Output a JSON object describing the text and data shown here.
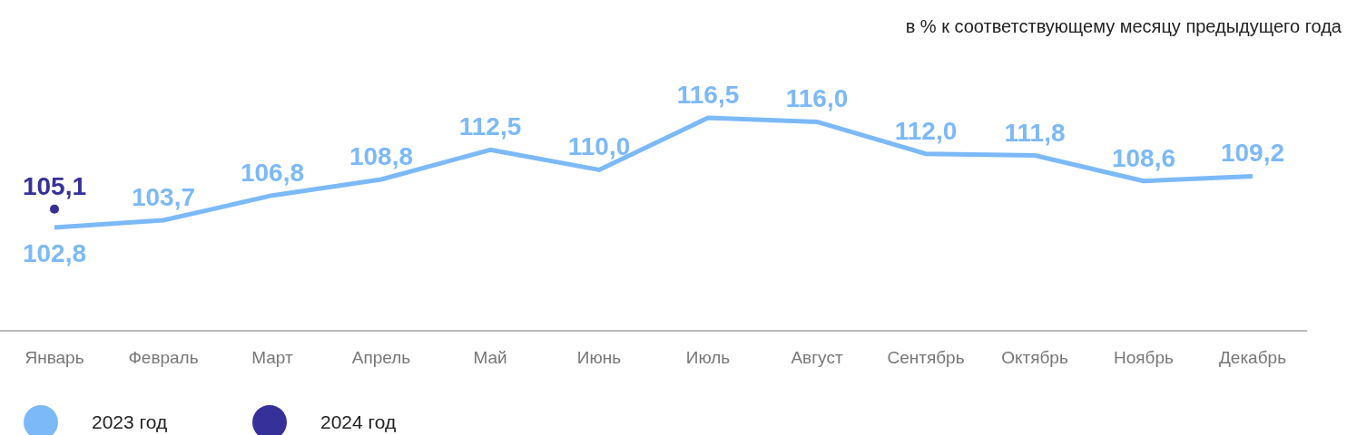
{
  "chart_data": {
    "type": "line",
    "subtitle": "в % к соответствующему месяцу предыдущего года",
    "categories": [
      "Январь",
      "Февраль",
      "Март",
      "Апрель",
      "Май",
      "Июнь",
      "Июль",
      "Август",
      "Сентябрь",
      "Октябрь",
      "Ноябрь",
      "Декабрь"
    ],
    "series": [
      {
        "name": "2023 год",
        "color": "#7cb9f8",
        "values": [
          102.8,
          103.7,
          106.8,
          108.8,
          112.5,
          110.0,
          116.5,
          116.0,
          112.0,
          111.8,
          108.6,
          109.2
        ],
        "value_labels": [
          "102,8",
          "103,7",
          "106,8",
          "108,8",
          "112,5",
          "110,0",
          "116,5",
          "116,0",
          "112,0",
          "111,8",
          "108,6",
          "109,2"
        ]
      },
      {
        "name": "2024 год",
        "type": "scatter",
        "color": "#36309a",
        "values": [
          105.1,
          null,
          null,
          null,
          null,
          null,
          null,
          null,
          null,
          null,
          null,
          null
        ],
        "value_labels": [
          "105,1",
          null,
          null,
          null,
          null,
          null,
          null,
          null,
          null,
          null,
          null,
          null
        ]
      }
    ],
    "legend": "bottom",
    "grid": false
  }
}
